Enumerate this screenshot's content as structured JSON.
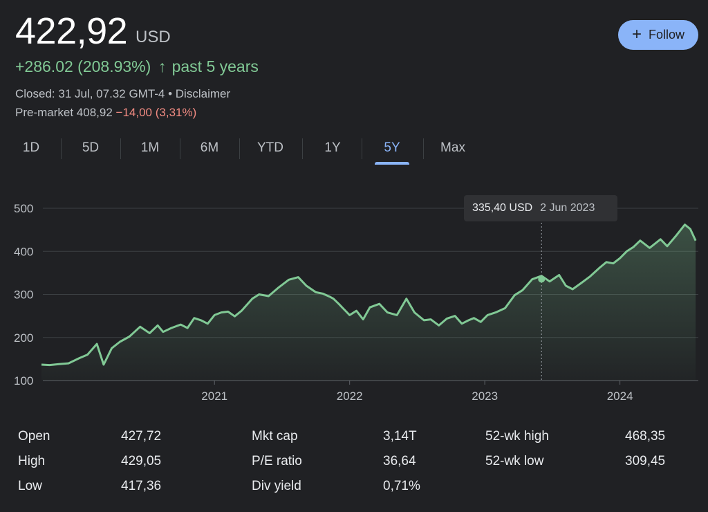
{
  "quote": {
    "price": "422,92",
    "currency": "USD",
    "change": "+286.02 (208.93%)",
    "change_arrow": "↑",
    "change_period": "past 5 years",
    "closed_text": "Closed: 31 Jul, 07.32 GMT-4 • Disclaimer",
    "premarket_label": "Pre-market 408,92",
    "premarket_change": "−14,00 (3,31%)"
  },
  "follow_button": {
    "icon": "plus-icon",
    "label": "Follow"
  },
  "ranges": [
    "1D",
    "5D",
    "1M",
    "6M",
    "YTD",
    "1Y",
    "5Y",
    "Max"
  ],
  "active_range": "5Y",
  "tooltip": {
    "value": "335,40 USD",
    "date": "2 Jun 2023"
  },
  "colors": {
    "line": "#81c995",
    "accent": "#8ab4f8",
    "negative": "#f28b82",
    "background": "#202124"
  },
  "chart_data": {
    "type": "area",
    "title": "",
    "xlabel": "",
    "ylabel": "",
    "y_ticks": [
      100,
      200,
      300,
      400,
      500
    ],
    "ylim": [
      100,
      500
    ],
    "x_ticks": [
      "2021",
      "2022",
      "2023",
      "2024"
    ],
    "x_tick_values": [
      2021.0,
      2022.0,
      2023.0,
      2024.0
    ],
    "xlim": [
      2019.72,
      2024.58
    ],
    "grid": true,
    "series": [
      {
        "x": [
          2019.72,
          2019.78,
          2019.85,
          2019.92,
          2020.0,
          2020.06,
          2020.13,
          2020.18,
          2020.24,
          2020.3,
          2020.37,
          2020.45,
          2020.52,
          2020.58,
          2020.62,
          2020.68,
          2020.75,
          2020.8,
          2020.85,
          2020.9,
          2020.95,
          2021.0,
          2021.05,
          2021.1,
          2021.15,
          2021.2,
          2021.28,
          2021.33,
          2021.4,
          2021.47,
          2021.55,
          2021.62,
          2021.68,
          2021.75,
          2021.8,
          2021.85,
          2021.88,
          2021.92,
          2021.95,
          2022.0,
          2022.05,
          2022.1,
          2022.15,
          2022.22,
          2022.28,
          2022.35,
          2022.42,
          2022.48,
          2022.55,
          2022.6,
          2022.66,
          2022.72,
          2022.78,
          2022.83,
          2022.88,
          2022.92,
          2022.97,
          2023.02,
          2023.08,
          2023.15,
          2023.22,
          2023.28,
          2023.35,
          2023.42,
          2023.48,
          2023.55,
          2023.6,
          2023.65,
          2023.72,
          2023.78,
          2023.85,
          2023.9,
          2023.95,
          2024.0,
          2024.05,
          2024.1,
          2024.15,
          2024.22,
          2024.3,
          2024.35,
          2024.42,
          2024.48,
          2024.52,
          2024.56
        ],
        "y": [
          137,
          136,
          138,
          140,
          152,
          160,
          185,
          137,
          175,
          190,
          202,
          225,
          210,
          228,
          213,
          222,
          230,
          222,
          245,
          240,
          232,
          252,
          258,
          260,
          249,
          262,
          290,
          300,
          296,
          315,
          334,
          340,
          320,
          305,
          302,
          295,
          290,
          278,
          268,
          252,
          262,
          242,
          270,
          278,
          258,
          252,
          290,
          258,
          240,
          242,
          228,
          244,
          250,
          232,
          240,
          245,
          236,
          252,
          258,
          268,
          298,
          310,
          335,
          343,
          330,
          345,
          320,
          312,
          328,
          342,
          362,
          375,
          372,
          384,
          400,
          410,
          425,
          408,
          428,
          412,
          438,
          462,
          452,
          425
        ]
      }
    ],
    "highlight": {
      "x": 2023.42,
      "y": 335.4
    }
  },
  "stats": [
    [
      {
        "label": "Open",
        "value": "427,72"
      },
      {
        "label": "High",
        "value": "429,05"
      },
      {
        "label": "Low",
        "value": "417,36"
      }
    ],
    [
      {
        "label": "Mkt cap",
        "value": "3,14T"
      },
      {
        "label": "P/E ratio",
        "value": "36,64"
      },
      {
        "label": "Div yield",
        "value": "0,71%"
      }
    ],
    [
      {
        "label": "52-wk high",
        "value": "468,35"
      },
      {
        "label": "52-wk low",
        "value": "309,45"
      }
    ]
  ]
}
